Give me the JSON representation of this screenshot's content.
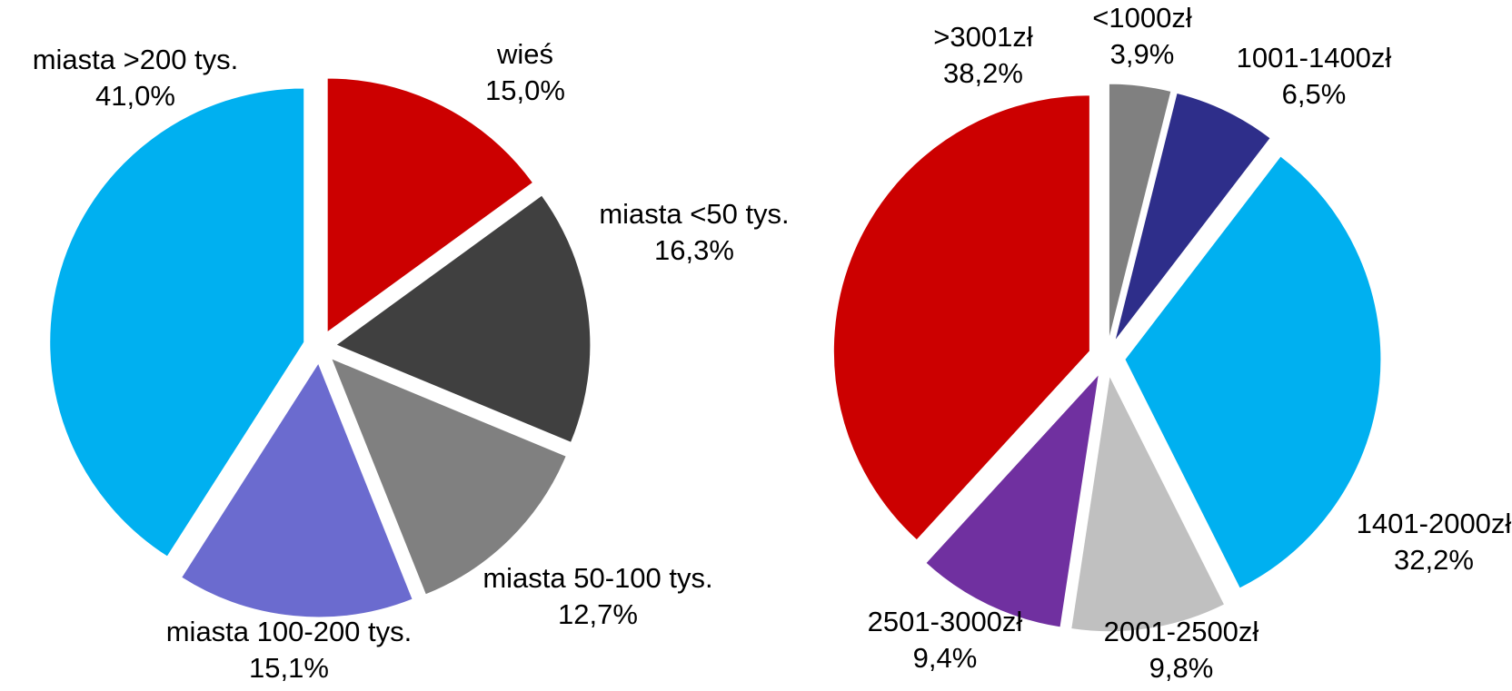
{
  "chart_data": [
    {
      "type": "pie",
      "categories": [
        "wieś",
        "miasta <50 tys.",
        "miasta 50-100 tys.",
        "miasta 100-200 tys.",
        "miasta >200 tys."
      ],
      "values": [
        15.0,
        16.3,
        12.7,
        15.1,
        41.0
      ],
      "value_labels": [
        "15,0%",
        "16,3%",
        "12,7%",
        "15,1%",
        "41,0%"
      ],
      "colors": [
        "#cc0000",
        "#404040",
        "#808080",
        "#6b6bcf",
        "#00b0f0"
      ]
    },
    {
      "type": "pie",
      "categories": [
        "<1000zł",
        "1001-1400zł",
        "1401-2000zł",
        "2001-2500zł",
        "2501-3000zł",
        ">3001zł"
      ],
      "values": [
        3.9,
        6.5,
        32.2,
        9.8,
        9.4,
        38.2
      ],
      "value_labels": [
        "3,9%",
        "6,5%",
        "32,2%",
        "9,8%",
        "9,4%",
        "38,2%"
      ],
      "colors": [
        "#808080",
        "#2e2e8a",
        "#00b0f0",
        "#c0c0c0",
        "#7030a0",
        "#cc0000"
      ]
    }
  ]
}
